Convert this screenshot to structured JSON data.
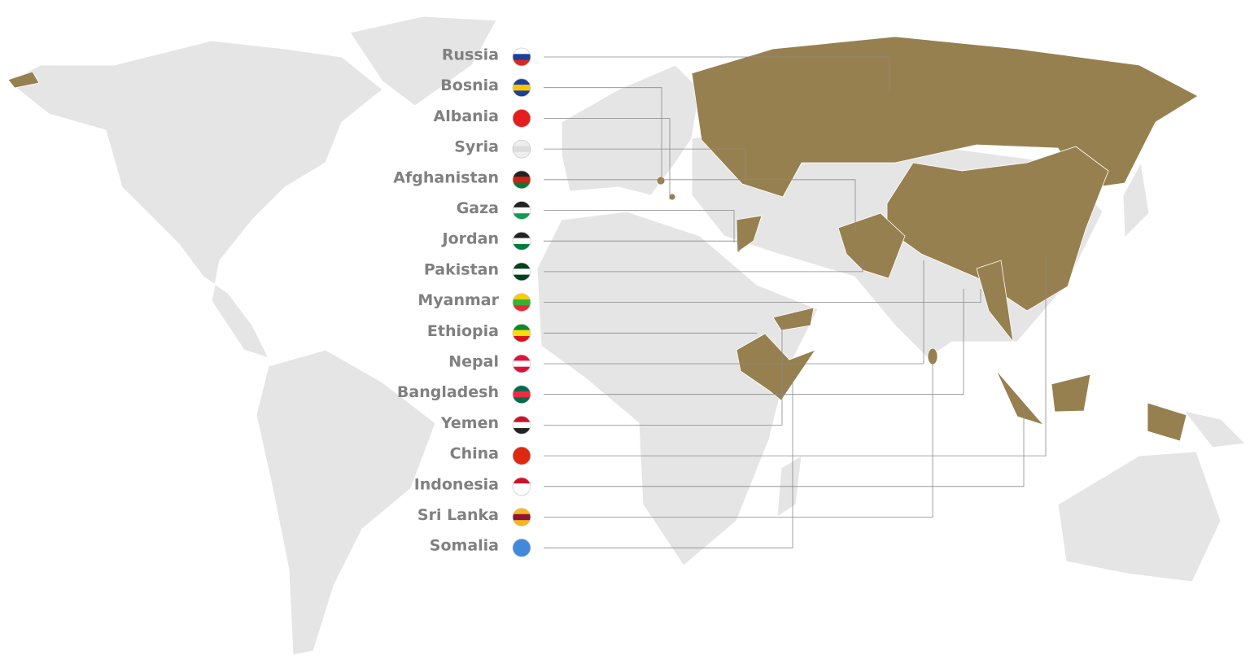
{
  "countries": [
    "Russia",
    "Bosnia",
    "Albania",
    "Syria",
    "Afghanistan",
    "Gaza",
    "Jordan",
    "Pakistan",
    "Myanmar",
    "Ethiopia",
    "Nepal",
    "Bangladesh",
    "Yemen",
    "China",
    "Indonesia",
    "Sri Lanka",
    "Somalia"
  ]
}
